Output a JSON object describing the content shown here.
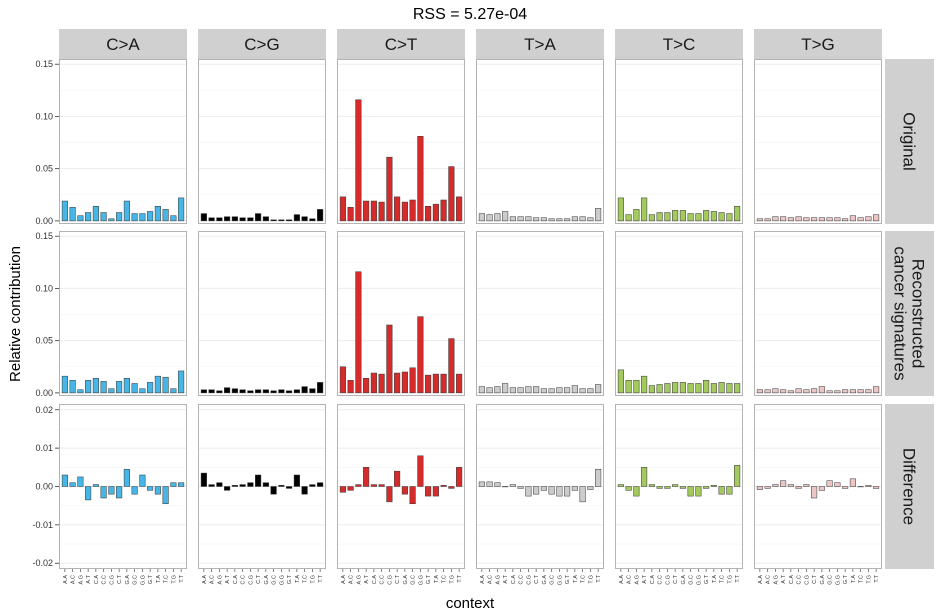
{
  "chart_data": {
    "type": "bar",
    "title": "RSS = 5.27e-04",
    "xlabel": "context",
    "ylabel": "Relative contribution",
    "columns": [
      "C>A",
      "C>G",
      "C>T",
      "T>A",
      "T>C",
      "T>G"
    ],
    "rows": [
      "Original",
      "Reconstructed\ncancer signatures",
      "Difference"
    ],
    "colors": {
      "C>A": "#47b6e6",
      "C>G": "#000000",
      "C>T": "#d62b2b",
      "T>A": "#cccccc",
      "T>C": "#a3c95f",
      "T>G": "#ebc6c4"
    },
    "contexts": [
      "A.A",
      "A.C",
      "A.G",
      "A.T",
      "C.A",
      "C.C",
      "C.G",
      "C.T",
      "G.A",
      "G.C",
      "G.G",
      "G.T",
      "T.A",
      "T.C",
      "T.G",
      "T.T"
    ],
    "row_scales": [
      {
        "ylim": [
          -0.003,
          0.155
        ],
        "ticks": [
          0,
          0.05,
          0.1,
          0.15
        ],
        "tick_labels": [
          "0.00",
          "0.05",
          "0.10",
          "0.15"
        ]
      },
      {
        "ylim": [
          -0.003,
          0.155
        ],
        "ticks": [
          0,
          0.05,
          0.1,
          0.15
        ],
        "tick_labels": [
          "0.00",
          "0.05",
          "0.10",
          "0.15"
        ]
      },
      {
        "ylim": [
          -0.0215,
          0.0215
        ],
        "ticks": [
          -0.02,
          -0.01,
          0,
          0.01,
          0.02
        ],
        "tick_labels": [
          "-0.02",
          "-0.01",
          "0.00",
          "0.01",
          "0.02"
        ]
      }
    ],
    "series": [
      {
        "row": "Original",
        "values": {
          "C>A": [
            0.019,
            0.013,
            0.005,
            0.008,
            0.014,
            0.008,
            0.002,
            0.008,
            0.019,
            0.007,
            0.007,
            0.009,
            0.014,
            0.011,
            0.005,
            0.022
          ],
          "C>G": [
            0.007,
            0.003,
            0.003,
            0.004,
            0.004,
            0.003,
            0.003,
            0.007,
            0.004,
            0.001,
            0.001,
            0.001,
            0.006,
            0.004,
            0.002,
            0.011
          ],
          "C>T": [
            0.023,
            0.013,
            0.116,
            0.019,
            0.019,
            0.018,
            0.061,
            0.023,
            0.018,
            0.02,
            0.081,
            0.014,
            0.016,
            0.02,
            0.052,
            0.023
          ],
          "T>A": [
            0.007,
            0.006,
            0.007,
            0.009,
            0.004,
            0.004,
            0.004,
            0.003,
            0.003,
            0.002,
            0.002,
            0.002,
            0.004,
            0.004,
            0.003,
            0.012
          ],
          "T>C": [
            0.022,
            0.006,
            0.011,
            0.022,
            0.006,
            0.008,
            0.008,
            0.01,
            0.01,
            0.007,
            0.007,
            0.01,
            0.009,
            0.008,
            0.007,
            0.014
          ],
          "T>G": [
            0.002,
            0.002,
            0.004,
            0.004,
            0.003,
            0.004,
            0.003,
            0.003,
            0.003,
            0.003,
            0.003,
            0.002,
            0.005,
            0.003,
            0.004,
            0.006
          ]
        }
      },
      {
        "row": "Reconstructed\ncancer signatures",
        "values": {
          "C>A": [
            0.016,
            0.012,
            0.003,
            0.012,
            0.014,
            0.011,
            0.004,
            0.011,
            0.014,
            0.009,
            0.004,
            0.01,
            0.016,
            0.015,
            0.004,
            0.021
          ],
          "C>G": [
            0.003,
            0.003,
            0.002,
            0.005,
            0.004,
            0.003,
            0.002,
            0.003,
            0.003,
            0.002,
            0.003,
            0.002,
            0.003,
            0.006,
            0.004,
            0.01
          ],
          "C>T": [
            0.025,
            0.012,
            0.116,
            0.014,
            0.019,
            0.018,
            0.065,
            0.019,
            0.02,
            0.024,
            0.073,
            0.017,
            0.018,
            0.018,
            0.052,
            0.018
          ],
          "T>A": [
            0.006,
            0.005,
            0.006,
            0.009,
            0.005,
            0.005,
            0.006,
            0.006,
            0.004,
            0.004,
            0.005,
            0.005,
            0.007,
            0.004,
            0.004,
            0.008
          ],
          "T>C": [
            0.022,
            0.012,
            0.012,
            0.016,
            0.007,
            0.008,
            0.009,
            0.01,
            0.01,
            0.009,
            0.009,
            0.012,
            0.009,
            0.01,
            0.009,
            0.009
          ],
          "T>G": [
            0.003,
            0.003,
            0.004,
            0.003,
            0.002,
            0.004,
            0.003,
            0.004,
            0.006,
            0.002,
            0.002,
            0.003,
            0.003,
            0.003,
            0.003,
            0.006
          ]
        }
      },
      {
        "row": "Difference",
        "values": {
          "C>A": [
            0.003,
            0.001,
            0.0025,
            -0.0035,
            0.0005,
            -0.003,
            -0.002,
            -0.003,
            0.0045,
            -0.002,
            0.003,
            -0.001,
            -0.002,
            -0.0045,
            0.001,
            0.001
          ],
          "C>G": [
            0.0035,
            0.0005,
            0.001,
            -0.001,
            0.0003,
            0.0005,
            0.001,
            0.003,
            0.001,
            -0.002,
            0.0003,
            -0.0005,
            0.003,
            -0.002,
            0.0005,
            0.001
          ],
          "C>T": [
            -0.0015,
            -0.001,
            0.0005,
            0.005,
            0.0005,
            0.0005,
            -0.004,
            0.004,
            -0.002,
            -0.0045,
            0.008,
            -0.0025,
            -0.0025,
            0.0003,
            -0.0005,
            0.005
          ],
          "T>A": [
            0.0012,
            0.0012,
            0.001,
            0.0,
            0.0005,
            -0.0005,
            -0.0025,
            -0.002,
            -0.001,
            -0.002,
            -0.0025,
            -0.0025,
            -0.001,
            -0.004,
            -0.0008,
            0.0045
          ],
          "T>C": [
            0.0005,
            -0.001,
            -0.0025,
            0.005,
            0.0005,
            -0.0005,
            -0.0005,
            0.0005,
            -0.0005,
            -0.0025,
            -0.0025,
            -0.0005,
            0.0003,
            -0.002,
            -0.002,
            0.0055
          ],
          "T>G": [
            -0.0008,
            -0.0005,
            0.0005,
            0.0015,
            0.0005,
            -0.0005,
            0.0005,
            -0.003,
            -0.001,
            0.0015,
            0.001,
            -0.0005,
            0.002,
            0.0,
            0.0003,
            -0.0005
          ]
        }
      }
    ]
  }
}
